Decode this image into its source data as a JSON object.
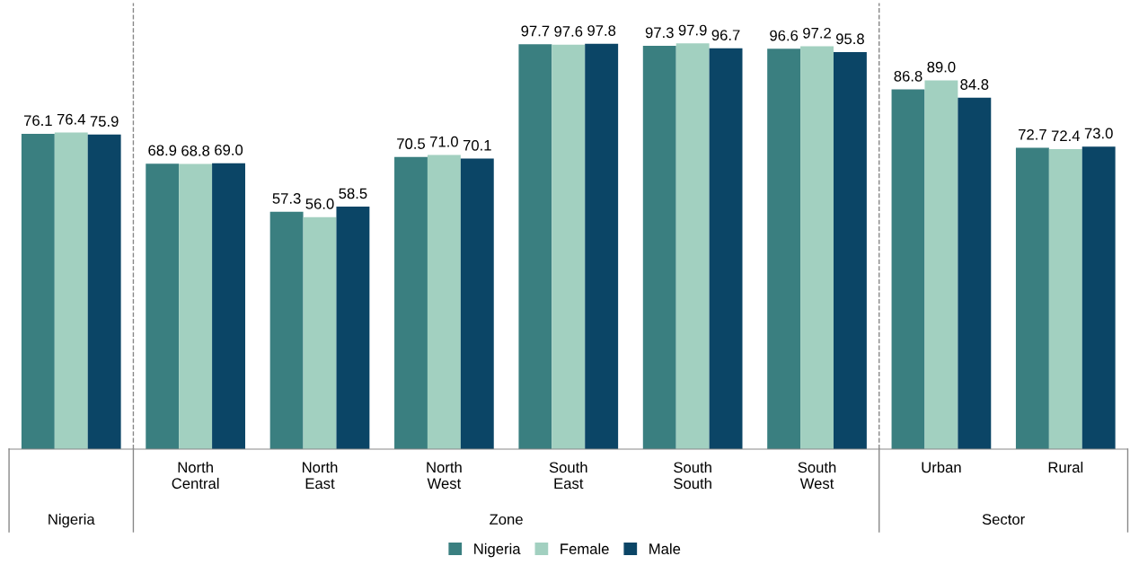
{
  "chart_data": {
    "type": "bar",
    "categories": [
      null,
      "North\nCentral",
      "North\nEast",
      "North\nWest",
      "South\nEast",
      "South\nSouth",
      "South\nWest",
      "Urban",
      "Rural"
    ],
    "series": [
      {
        "name": "Nigeria",
        "color": "#3a7f80",
        "values": [
          76.1,
          68.9,
          57.3,
          70.5,
          97.7,
          97.3,
          96.6,
          86.8,
          72.7
        ],
        "value_labels": [
          "76.1",
          "68.9",
          "57.3",
          "70.5",
          "97.7",
          "97.3",
          "96.6",
          "86.8",
          "72.7"
        ]
      },
      {
        "name": "Female",
        "color": "#a2d0c0",
        "values": [
          76.4,
          68.8,
          56.0,
          71.0,
          97.6,
          97.9,
          97.2,
          89.0,
          72.4
        ],
        "value_labels": [
          "76.4",
          "68.8",
          "56.0",
          "71.0",
          "97.6",
          "97.9",
          "97.2",
          "89.0",
          "72.4"
        ]
      },
      {
        "name": "Male",
        "color": "#0b4566",
        "values": [
          75.9,
          69.0,
          58.5,
          70.1,
          97.8,
          96.7,
          95.8,
          84.8,
          73.0
        ],
        "value_labels": [
          "75.9",
          "69.0",
          "58.5",
          "70.1",
          "97.8",
          "96.7",
          "95.8",
          "84.8",
          "73.0"
        ]
      }
    ],
    "annotations": [
      "Nigeria",
      "Zone",
      "Sector"
    ],
    "legend": "bottom",
    "grid": false
  }
}
